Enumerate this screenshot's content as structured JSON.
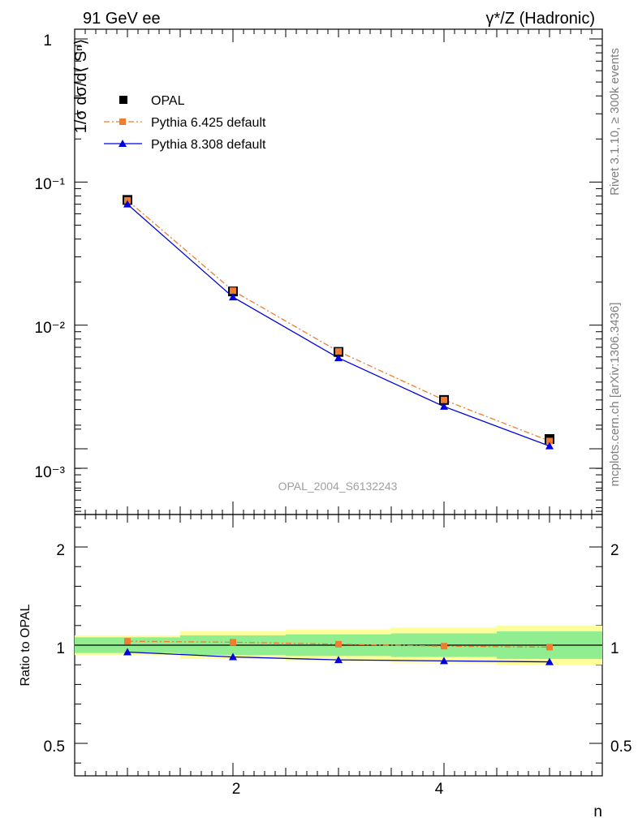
{
  "header": {
    "energy": "91 GeV ee",
    "process": "γ*/Z (Hadronic)"
  },
  "side_labels": {
    "rivet": "Rivet 3.1.10, ≥ 300k events",
    "mcplots": "mcplots.cern.ch [arXiv:1306.3436]"
  },
  "analysis_ref": "OPAL_2004_S6132243",
  "colors": {
    "data": "#000000",
    "pythia6": "#f07c30",
    "pythia8": "#0000dd",
    "band_inner": "#90ee90",
    "band_outer": "#ffff99"
  },
  "chart_data": [
    {
      "type": "line",
      "ylabel": "1/σ dσ/d⟨ Sⁿ⟩",
      "xlabel": "n",
      "yscale": "log",
      "ylim": [
        0.0005,
        1.2
      ],
      "xlim": [
        0.5,
        5.5
      ],
      "x": [
        1,
        2,
        3,
        4,
        5
      ],
      "yticks": [
        "10⁻³",
        "10⁻²",
        "10⁻¹",
        "1"
      ],
      "legend": {
        "placement": "top-left",
        "entries": [
          "OPAL",
          "Pythia 6.425 default",
          "Pythia 8.308 default"
        ]
      },
      "series": [
        {
          "name": "OPAL",
          "values": [
            0.075,
            0.0172,
            0.0065,
            0.003,
            0.0016
          ]
        },
        {
          "name": "Pythia 6.425 default",
          "values": [
            0.0745,
            0.0174,
            0.00655,
            0.003,
            0.00155
          ]
        },
        {
          "name": "Pythia 8.308 default",
          "values": [
            0.07,
            0.0157,
            0.0059,
            0.0027,
            0.00143
          ]
        }
      ]
    },
    {
      "type": "line",
      "ylabel": "Ratio to OPAL",
      "xlabel": "n",
      "ylim": [
        0.35,
        2.4
      ],
      "xlim": [
        0.5,
        5.5
      ],
      "x": [
        1,
        2,
        3,
        4,
        5
      ],
      "xticks": [
        "2",
        "4"
      ],
      "yticks": [
        "0.5",
        "1",
        "2"
      ],
      "bands": [
        {
          "x": [
            1,
            2,
            3,
            4,
            5
          ],
          "inner": [
            0.04,
            0.05,
            0.055,
            0.06,
            0.07
          ],
          "outer": [
            0.05,
            0.07,
            0.08,
            0.09,
            0.1
          ]
        }
      ],
      "series": [
        {
          "name": "Pythia 6.425 default",
          "values": [
            1.02,
            1.015,
            1.005,
            0.995,
            0.99
          ]
        },
        {
          "name": "Pythia 8.308 default",
          "values": [
            0.965,
            0.94,
            0.925,
            0.92,
            0.915
          ]
        }
      ]
    }
  ]
}
